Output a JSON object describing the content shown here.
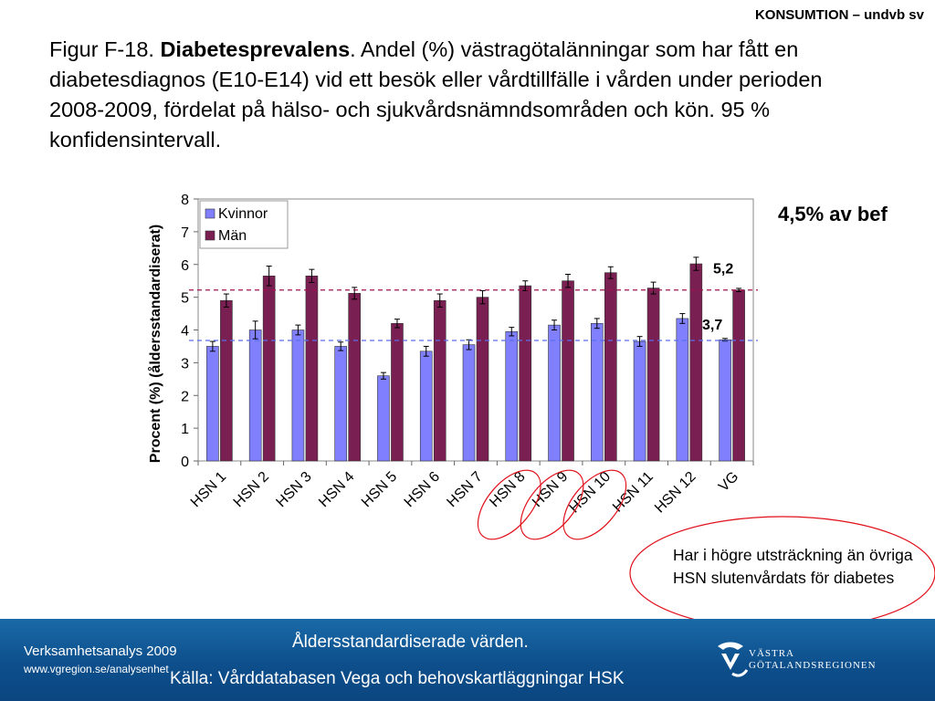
{
  "header": {
    "corner_label": "KONSUMTION – undvb sv"
  },
  "figure": {
    "prefix": "Figur F-18. ",
    "bold_title": "Diabetesprevalens",
    "rest": ". Andel (%) västragötalänningar som har fått en diabetesdiagnos (E10-E14) vid ett besök eller vårdtillfälle i vården under perioden 2008-2009, fördelat på hälso- och sjukvårdsnämndsområden och kön. 95 % konfidensintervall."
  },
  "chart_data": {
    "type": "bar",
    "categories": [
      "HSN 1",
      "HSN 2",
      "HSN 3",
      "HSN 4",
      "HSN 5",
      "HSN 6",
      "HSN 7",
      "HSN 8",
      "HSN 9",
      "HSN 10",
      "HSN 11",
      "HSN 12",
      "VG"
    ],
    "series": [
      {
        "name": "Kvinnor",
        "color": "#8080ff",
        "values": [
          3.5,
          4.0,
          4.0,
          3.5,
          2.6,
          3.35,
          3.55,
          3.95,
          4.15,
          4.2,
          3.65,
          4.35,
          3.7
        ],
        "err": [
          0.15,
          0.27,
          0.15,
          0.13,
          0.1,
          0.15,
          0.15,
          0.13,
          0.15,
          0.15,
          0.15,
          0.15,
          0.04
        ]
      },
      {
        "name": "Män",
        "color": "#7a1f52",
        "values": [
          4.9,
          5.65,
          5.65,
          5.12,
          4.2,
          4.9,
          5.0,
          5.35,
          5.5,
          5.75,
          5.28,
          6.02,
          5.22
        ],
        "err": [
          0.2,
          0.3,
          0.2,
          0.18,
          0.13,
          0.2,
          0.2,
          0.15,
          0.2,
          0.18,
          0.18,
          0.2,
          0.05
        ]
      }
    ],
    "reference_lines": [
      {
        "value": 5.22,
        "label": "5,2",
        "color": "#a3124f"
      },
      {
        "value": 3.68,
        "label": "3,7",
        "color": "#5a6cf0"
      }
    ],
    "ylabel": "Procent (%) (åldersstandardiserat)",
    "ylim": [
      0,
      8
    ],
    "yticks": [
      0,
      1,
      2,
      3,
      4,
      5,
      6,
      7,
      8
    ],
    "legend_position": "top-left",
    "grid": false,
    "highlighted_categories": [
      "HSN 8",
      "HSN 9",
      "HSN 10"
    ]
  },
  "callouts": {
    "pct_label": "4,5% av bef",
    "note": "Har i högre utsträckning än övriga HSN slutenvårdats för diabetes"
  },
  "footer": {
    "org": "Verksamhetsanalys 2009",
    "url": "www.vgregion.se/analysenhet",
    "note": "Åldersstandardiserade värden.",
    "source": "Källa: Vårddatabasen Vega och behovskartläggningar HSK",
    "logo_line1": "VÄSTRA",
    "logo_line2": "GÖTALANDSREGIONEN"
  }
}
